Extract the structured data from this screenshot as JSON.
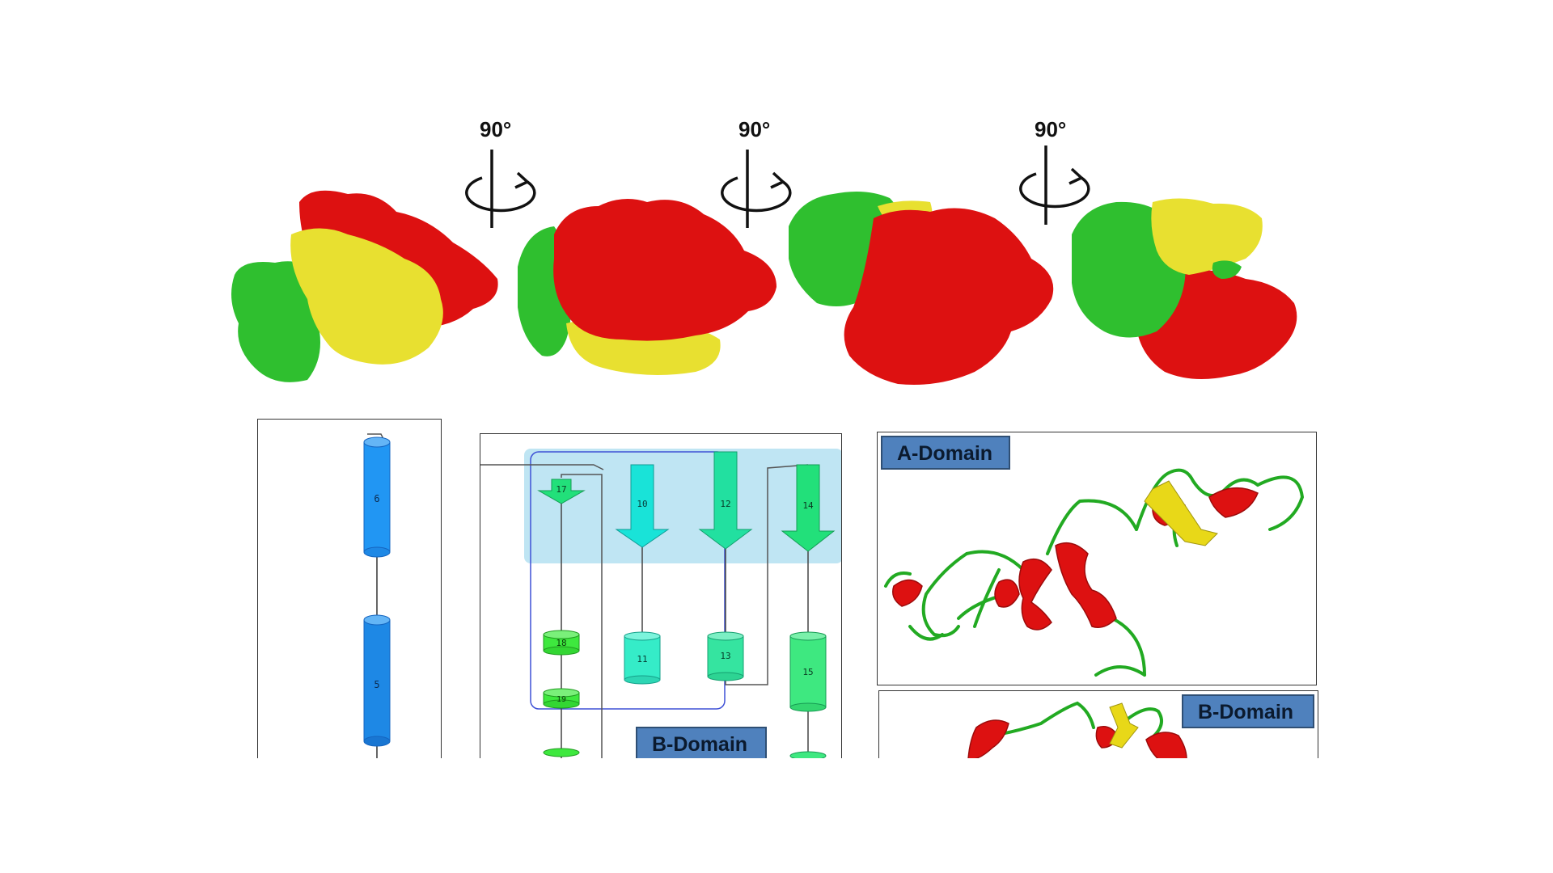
{
  "rotations": [
    {
      "label": "90°"
    },
    {
      "label": "90°"
    },
    {
      "label": "90°"
    }
  ],
  "colors": {
    "green": "#2fbf2f",
    "yellow": "#e8e030",
    "red": "#dd1111",
    "helix_blue": "#1e88e5",
    "strand_cyan": "#19e3c8",
    "strand_green": "#22e07a",
    "highlight": "#a9dcef",
    "tag_blue": "#4f81bd"
  },
  "topology_left": {
    "helices": [
      {
        "number": "6"
      },
      {
        "number": "5"
      }
    ]
  },
  "topology_middle": {
    "strands": [
      {
        "number": "17"
      },
      {
        "number": "10"
      },
      {
        "number": "12"
      },
      {
        "number": "14"
      }
    ],
    "helices": [
      {
        "number": "18"
      },
      {
        "number": "11"
      },
      {
        "number": "13"
      },
      {
        "number": "15"
      },
      {
        "number": "19"
      }
    ],
    "domain_label": "B-Domain"
  },
  "ribbon_top": {
    "domain_label": "A-Domain"
  },
  "ribbon_bottom": {
    "domain_label": "B-Domain"
  }
}
